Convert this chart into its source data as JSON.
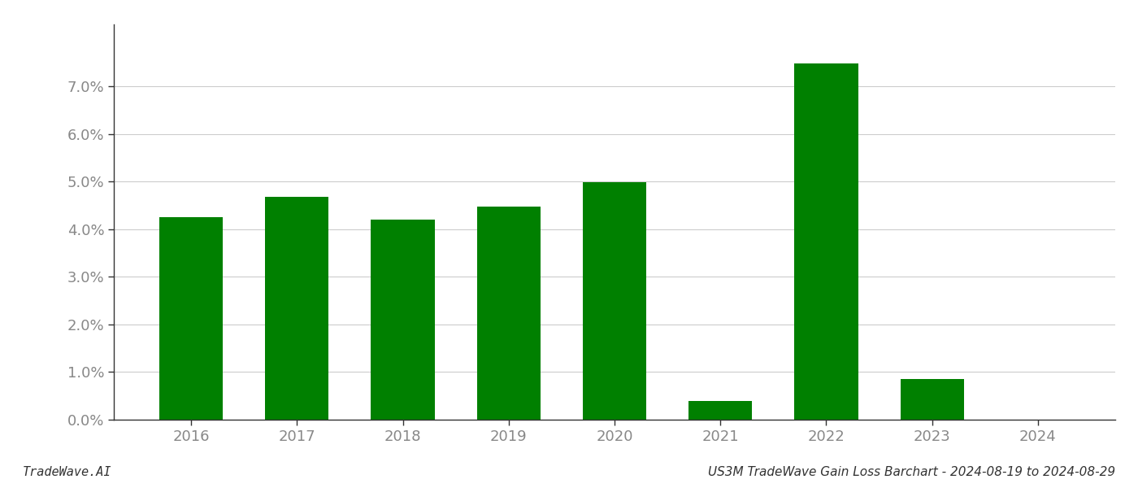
{
  "categories": [
    "2016",
    "2017",
    "2018",
    "2019",
    "2020",
    "2021",
    "2022",
    "2023",
    "2024"
  ],
  "values": [
    0.0425,
    0.0468,
    0.042,
    0.0448,
    0.0498,
    0.004,
    0.0748,
    0.0085,
    0.0
  ],
  "bar_color": "#008000",
  "title": "US3M TradeWave Gain Loss Barchart - 2024-08-19 to 2024-08-29",
  "footer_left": "TradeWave.AI",
  "ylim": [
    0,
    0.083
  ],
  "yticks": [
    0.0,
    0.01,
    0.02,
    0.03,
    0.04,
    0.05,
    0.06,
    0.07
  ],
  "background_color": "#ffffff",
  "grid_color": "#cccccc",
  "bar_width": 0.6,
  "tick_label_color": "#888888",
  "spine_color": "#333333",
  "footer_color": "#333333",
  "label_fontsize": 13
}
